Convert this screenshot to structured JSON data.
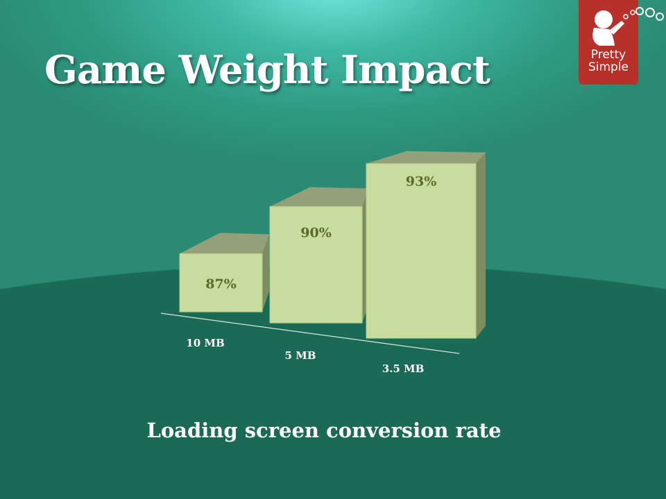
{
  "slide": {
    "title": "Game Weight Impact",
    "subtitle": "Loading screen conversion rate"
  },
  "logo": {
    "text_line1": "Pretty",
    "text_line2": "Simple",
    "color": "#b8302a"
  },
  "chart_data": {
    "type": "bar",
    "style": "3d",
    "categories": [
      "10 MB",
      "5 MB",
      "3.5 MB"
    ],
    "values": [
      87,
      90,
      93
    ],
    "data_labels": [
      "87%",
      "90%",
      "93%"
    ],
    "unit": "%",
    "title": "",
    "xlabel": "Loading screen conversion rate",
    "ylabel": "",
    "grid": false,
    "legend": "none",
    "bar_color": "#c8dca0"
  }
}
